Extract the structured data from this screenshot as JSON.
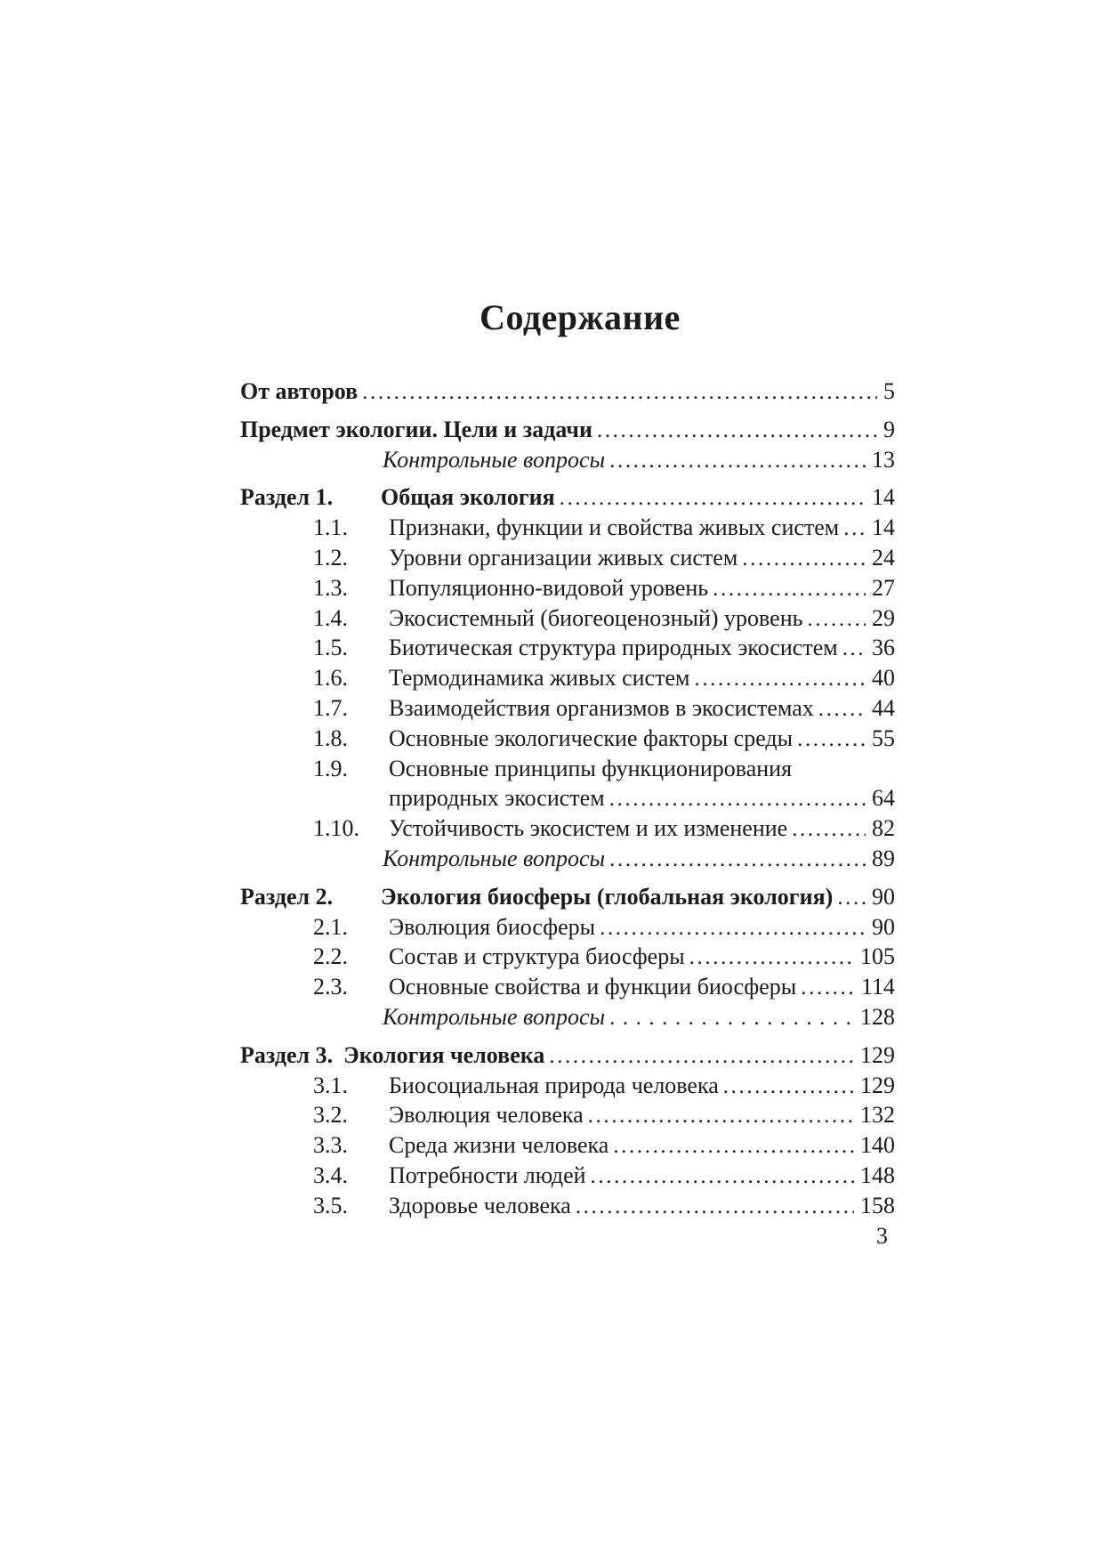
{
  "page": {
    "title": "Содержание",
    "footer_page_number": "3",
    "text_color": "#1b1b1b",
    "background_color": "#ffffff"
  },
  "toc": {
    "rows": [
      {
        "label": "",
        "text": "От авторов",
        "page": "5",
        "style": "bold",
        "indent": "root"
      },
      {
        "label": "",
        "text": "Предмет экологии. Цели и задачи",
        "page": "9",
        "style": "bold",
        "indent": "root",
        "section_start": true
      },
      {
        "label": "",
        "text": "Контрольные вопросы",
        "page": "13",
        "style": "italic",
        "indent": "questions"
      },
      {
        "label": "Раздел 1.",
        "text": "Общая экология",
        "page": "14",
        "style": "bold",
        "indent": "root",
        "section_start": true
      },
      {
        "label": "1.1.",
        "text": "Признаки, функции и свойства живых систем",
        "page": "14",
        "style": "normal",
        "indent": "sub"
      },
      {
        "label": "1.2.",
        "text": "Уровни организации живых систем",
        "page": "24",
        "style": "normal",
        "indent": "sub"
      },
      {
        "label": "1.3.",
        "text": "Популяционно-видовой уровень",
        "page": "27",
        "style": "normal",
        "indent": "sub"
      },
      {
        "label": "1.4.",
        "text": "Экосистемный (биогеоценозный) уровень",
        "page": "29",
        "style": "normal",
        "indent": "sub"
      },
      {
        "label": "1.5.",
        "text": "Биотическая структура природных экосистем",
        "page": "36",
        "style": "normal",
        "indent": "sub"
      },
      {
        "label": "1.6.",
        "text": "Термодинамика живых систем",
        "page": "40",
        "style": "normal",
        "indent": "sub"
      },
      {
        "label": "1.7.",
        "text": "Взаимодействия организмов в экосистемах",
        "page": "44",
        "style": "normal",
        "indent": "sub"
      },
      {
        "label": "1.8.",
        "text": "Основные экологические факторы среды",
        "page": "55",
        "style": "normal",
        "indent": "sub"
      },
      {
        "label": "1.9.",
        "text": "Основные принципы функционирования",
        "page": "",
        "style": "normal",
        "indent": "sub",
        "no_leader": true
      },
      {
        "label": "",
        "text": "природных экосистем",
        "page": "64",
        "style": "normal",
        "indent": "cont"
      },
      {
        "label": "1.10.",
        "text": "Устойчивость экосистем и их изменение",
        "page": "82",
        "style": "normal",
        "indent": "sub"
      },
      {
        "label": "",
        "text": "Контрольные вопросы",
        "page": "89",
        "style": "italic",
        "indent": "questions"
      },
      {
        "label": "Раздел 2.",
        "text": "Экология биосферы (глобальная экология)",
        "page": "90",
        "style": "bold",
        "indent": "root",
        "section_start": true
      },
      {
        "label": "2.1.",
        "text": "Эволюция биосферы",
        "page": "90",
        "style": "normal",
        "indent": "sub"
      },
      {
        "label": "2.2.",
        "text": "Состав и структура биосферы",
        "page": "105",
        "style": "normal",
        "indent": "sub"
      },
      {
        "label": "2.3.",
        "text": "Основные свойства и функции биосферы",
        "page": "114",
        "style": "normal",
        "indent": "sub"
      },
      {
        "label": "",
        "text": "Контрольные вопросы",
        "page": "128",
        "style": "italic",
        "indent": "questions",
        "wide_dots": true
      },
      {
        "label": "Раздел 3.",
        "text": "Экология человека",
        "page": "129",
        "style": "bold",
        "indent": "root",
        "section_start": true,
        "tight_label": true
      },
      {
        "label": "3.1.",
        "text": "Биосоциальная природа человека",
        "page": "129",
        "style": "normal",
        "indent": "sub"
      },
      {
        "label": "3.2.",
        "text": "Эволюция человека",
        "page": "132",
        "style": "normal",
        "indent": "sub"
      },
      {
        "label": "3.3.",
        "text": "Среда жизни человека",
        "page": "140",
        "style": "normal",
        "indent": "sub"
      },
      {
        "label": "3.4.",
        "text": "Потребности людей",
        "page": "148",
        "style": "normal",
        "indent": "sub"
      },
      {
        "label": "3.5.",
        "text": "Здоровье человека",
        "page": "158",
        "style": "normal",
        "indent": "sub"
      }
    ]
  }
}
